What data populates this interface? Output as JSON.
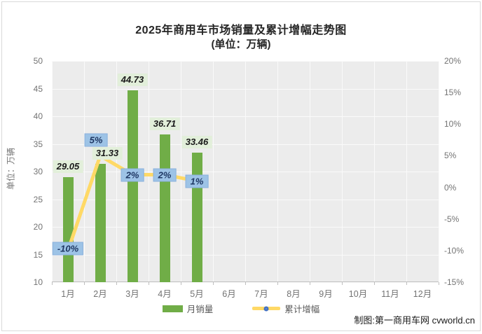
{
  "title": "2025年商用车市场销量及累计增幅走势图",
  "subtitle": "(单位：万辆)",
  "y_axis_title": "单位：万辆",
  "watermark": "制图:第一商用车网 cvworld.cn",
  "legend": {
    "bar_label": "月销量",
    "line_label": "累计增幅"
  },
  "colors": {
    "bar": "#70ad47",
    "line": "#ffd966",
    "bar_label_bg": "#e2efda",
    "pct_label_bg": "#9dc3e6",
    "pct_label_text": "#1f3864",
    "marker_ring": "#4472c4",
    "axis_text": "#737373",
    "plot_bg": "#ececec"
  },
  "chart_data": {
    "type": "bar+line combo",
    "title": "2025年商用车市场销量及累计增幅走势图",
    "subtitle": "(单位：万辆)",
    "categories": [
      "1月",
      "2月",
      "3月",
      "4月",
      "5月",
      "6月",
      "7月",
      "8月",
      "9月",
      "10月",
      "11月",
      "12月"
    ],
    "series": [
      {
        "name": "月销量",
        "type": "bar",
        "axis": "left",
        "values": [
          29.05,
          31.33,
          44.73,
          36.71,
          33.46
        ],
        "labels": [
          "29.05",
          "31.33",
          "44.73",
          "36.71",
          "33.46"
        ]
      },
      {
        "name": "累计增幅",
        "type": "line",
        "axis": "right",
        "values": [
          -10,
          5,
          2,
          2,
          1
        ],
        "labels": [
          "-10%",
          "5%",
          "2%",
          "2%",
          "1%"
        ]
      }
    ],
    "left_axis": {
      "min": 10,
      "max": 50,
      "ticks": [
        "50",
        "45",
        "40",
        "35",
        "30",
        "25",
        "20",
        "15",
        "10"
      ],
      "label": "单位：万辆"
    },
    "right_axis": {
      "min": -15,
      "max": 20,
      "ticks": [
        "20%",
        "15%",
        "10%",
        "5%",
        "0%",
        "-5%",
        "-10%",
        "-15%"
      ]
    },
    "grid": true,
    "legend_position": "bottom"
  }
}
